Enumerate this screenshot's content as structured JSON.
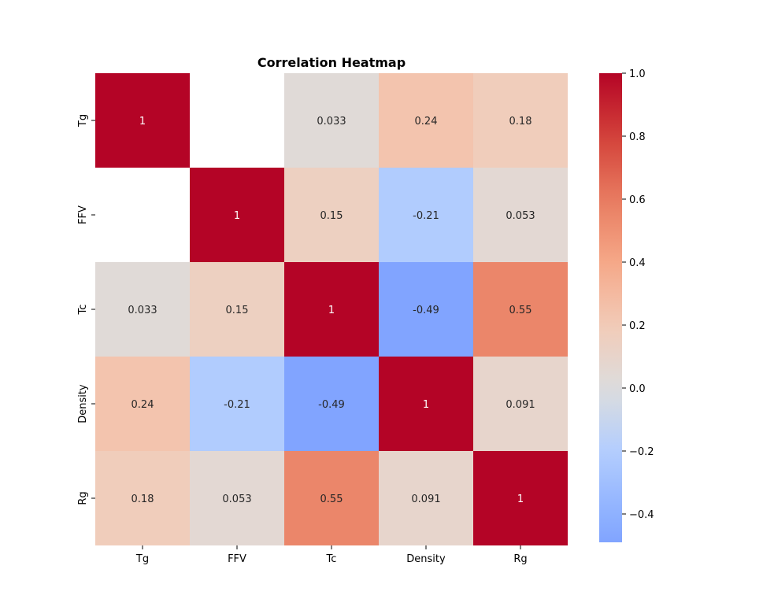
{
  "chart_data": {
    "type": "heatmap",
    "title": "Correlation Heatmap",
    "xlabel": "",
    "ylabel": "",
    "x_categories": [
      "Tg",
      "FFV",
      "Tc",
      "Density",
      "Rg"
    ],
    "y_categories": [
      "Tg",
      "FFV",
      "Tc",
      "Density",
      "Rg"
    ],
    "matrix": [
      [
        1,
        null,
        0.033,
        0.24,
        0.18
      ],
      [
        null,
        1,
        0.15,
        -0.21,
        0.053
      ],
      [
        0.033,
        0.15,
        1,
        -0.49,
        0.55
      ],
      [
        0.24,
        -0.21,
        -0.49,
        1,
        0.091
      ],
      [
        0.18,
        0.053,
        0.55,
        0.091,
        1
      ]
    ],
    "cell_labels": [
      [
        "1",
        "",
        "0.033",
        "0.24",
        "0.18"
      ],
      [
        "",
        "1",
        "0.15",
        "-0.21",
        "0.053"
      ],
      [
        "0.033",
        "0.15",
        "1",
        "-0.49",
        "0.55"
      ],
      [
        "0.24",
        "-0.21",
        "-0.49",
        "1",
        "0.091"
      ],
      [
        "0.18",
        "0.053",
        "0.55",
        "0.091",
        "1"
      ]
    ],
    "colormap": "coolwarm",
    "colorbar": {
      "range": [
        -0.49,
        1.0
      ],
      "ticks": [
        1.0,
        0.8,
        0.6,
        0.4,
        0.2,
        0.0,
        -0.2,
        -0.4
      ],
      "tick_labels": [
        "1.0",
        "0.8",
        "0.6",
        "0.4",
        "0.2",
        "0.0",
        "−0.2",
        "−0.4"
      ]
    },
    "grid": false,
    "legend": "colorbar-right"
  }
}
